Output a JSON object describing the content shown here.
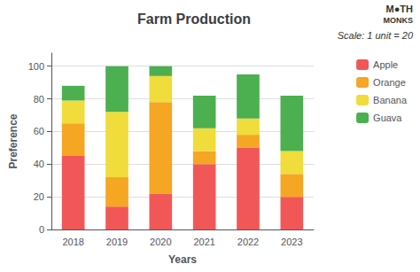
{
  "chart_data": {
    "type": "bar",
    "stacked": true,
    "title": "Farm Production",
    "xlabel": "Years",
    "ylabel": "Preference",
    "annotations": [
      "M●TH",
      "MONKS",
      "Scale: 1 unit = 20"
    ],
    "categories": [
      "2018",
      "2019",
      "2020",
      "2021",
      "2022",
      "2023"
    ],
    "series": [
      {
        "name": "Apple",
        "color": "#F25757",
        "values": [
          45,
          14,
          22,
          40,
          50,
          20
        ]
      },
      {
        "name": "Orange",
        "color": "#F5A623",
        "values": [
          20,
          18,
          56,
          8,
          8,
          14
        ]
      },
      {
        "name": "Banana",
        "color": "#F0DC3A",
        "values": [
          14,
          40,
          16,
          14,
          10,
          14
        ]
      },
      {
        "name": "Guava",
        "color": "#4CAF50",
        "values": [
          9,
          28,
          6,
          20,
          27,
          34
        ]
      }
    ],
    "ylim": [
      0,
      108
    ],
    "yticks": [
      0,
      20,
      40,
      60,
      80,
      100
    ],
    "grid": true,
    "legend": "right"
  }
}
